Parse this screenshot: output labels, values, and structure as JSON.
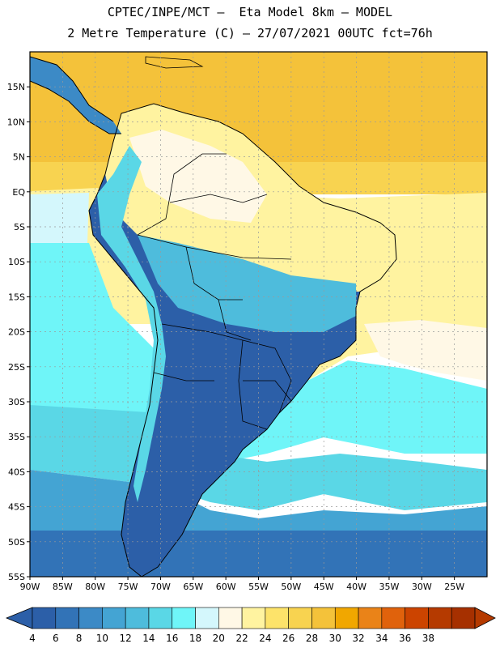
{
  "header": {
    "line1": "CPTEC/INPE/MCT –  Eta Model 8km – MODEL",
    "line2": "2 Metre Temperature (C) – 27/07/2021 00UTC fct=76h"
  },
  "map": {
    "lon_range": [
      -90,
      -20
    ],
    "lat_range": [
      -55,
      20
    ],
    "lon_ticks": [
      "90W",
      "85W",
      "80W",
      "75W",
      "70W",
      "65W",
      "60W",
      "55W",
      "50W",
      "45W",
      "40W",
      "35W",
      "30W",
      "25W"
    ],
    "lat_ticks": [
      "15N",
      "10N",
      "5N",
      "EQ",
      "5S",
      "10S",
      "15S",
      "20S",
      "25S",
      "30S",
      "35S",
      "40S",
      "45S",
      "50S",
      "55S"
    ],
    "grid": "dotted"
  },
  "colorbar": {
    "labels": [
      "4",
      "6",
      "8",
      "10",
      "12",
      "14",
      "16",
      "18",
      "20",
      "22",
      "24",
      "26",
      "28",
      "30",
      "32",
      "34",
      "36",
      "38"
    ],
    "colors": [
      "#2c5fa8",
      "#3273b7",
      "#3c8ac6",
      "#44a4d3",
      "#4ebcdc",
      "#5ad7e6",
      "#6ff5f8",
      "#d4f7fc",
      "#fff8e6",
      "#fff3a0",
      "#fde36a",
      "#f8d350",
      "#f4c23a",
      "#f1a700",
      "#ea8318",
      "#e0620c",
      "#cc4400",
      "#b53a00",
      "#a63000"
    ],
    "low_arrow": "#2c5fa8",
    "high_arrow": "#b53a00"
  }
}
